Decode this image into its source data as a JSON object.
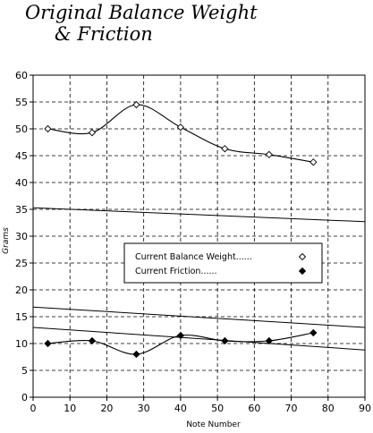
{
  "chart_data": {
    "type": "scatter",
    "title_line1": "Original Balance Weight",
    "title_line2": "& Friction",
    "xlabel": "Note Number",
    "ylabel": "Grams",
    "xlim": [
      0,
      90
    ],
    "ylim": [
      0,
      60
    ],
    "xticks": [
      0,
      10,
      20,
      30,
      40,
      50,
      60,
      70,
      80,
      90
    ],
    "yticks": [
      0,
      5,
      10,
      15,
      20,
      25,
      30,
      35,
      40,
      45,
      50,
      55,
      60
    ],
    "grid": true,
    "legend_position": "center",
    "series": [
      {
        "name": "Current Balance Weight......",
        "marker": "open-diamond",
        "x": [
          4,
          16,
          28,
          40,
          52,
          64,
          76
        ],
        "y": [
          50,
          49.3,
          54.5,
          50.3,
          46.3,
          45.2,
          43.8
        ]
      },
      {
        "name": "Current Friction......",
        "marker": "filled-diamond",
        "x": [
          4,
          16,
          28,
          40,
          52,
          64,
          76
        ],
        "y": [
          10,
          10.5,
          8,
          11.5,
          10.5,
          10.5,
          12
        ]
      }
    ],
    "reference_lines": [
      {
        "x": [
          0,
          90
        ],
        "y": [
          35.3,
          32.7
        ]
      },
      {
        "x": [
          0,
          90
        ],
        "y": [
          16.8,
          13
        ]
      },
      {
        "x": [
          0,
          90
        ],
        "y": [
          13,
          8.8
        ]
      }
    ],
    "colors": {
      "line": "#000000",
      "background": "#ffffff"
    }
  }
}
